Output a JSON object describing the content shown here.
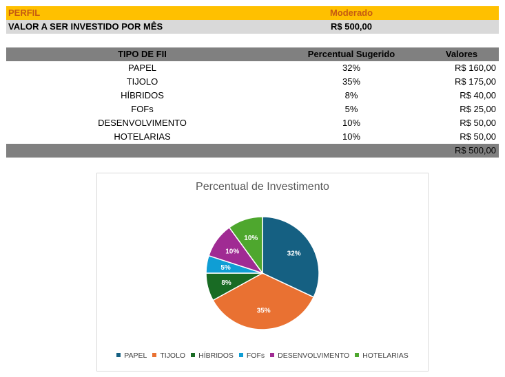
{
  "profile": {
    "label": "PERFIL",
    "value": "Moderado"
  },
  "monthly": {
    "label": "VALOR A SER INVESTIDO POR MÊS",
    "value": "R$ 500,00"
  },
  "table": {
    "headers": {
      "type": "TIPO DE FII",
      "pct": "Percentual Sugerido",
      "value": "Valores"
    },
    "rows": [
      {
        "type": "PAPEL",
        "pct": "32%",
        "value": "R$ 160,00"
      },
      {
        "type": "TIJOLO",
        "pct": "35%",
        "value": "R$ 175,00"
      },
      {
        "type": "HÍBRIDOS",
        "pct": "8%",
        "value": "R$ 40,00"
      },
      {
        "type": "FOFs",
        "pct": "5%",
        "value": "R$ 25,00"
      },
      {
        "type": "DESENVOLVIMENTO",
        "pct": "10%",
        "value": "R$ 50,00"
      },
      {
        "type": "HOTELARIAS",
        "pct": "10%",
        "value": "R$ 50,00"
      }
    ],
    "total": "R$ 500,00"
  },
  "chart_data": {
    "type": "pie",
    "title": "Percentual de Investimento",
    "categories": [
      "PAPEL",
      "TIJOLO",
      "HÍBRIDOS",
      "FOFs",
      "DESENVOLVIMENTO",
      "HOTELARIAS"
    ],
    "values": [
      32,
      35,
      8,
      5,
      10,
      10
    ],
    "data_labels": [
      "32%",
      "35%",
      "8%",
      "5%",
      "10%",
      "10%"
    ],
    "colors": [
      "#156082",
      "#e97132",
      "#196b24",
      "#0f9ed5",
      "#a02b93",
      "#4ea72e"
    ],
    "legend_position": "bottom"
  }
}
